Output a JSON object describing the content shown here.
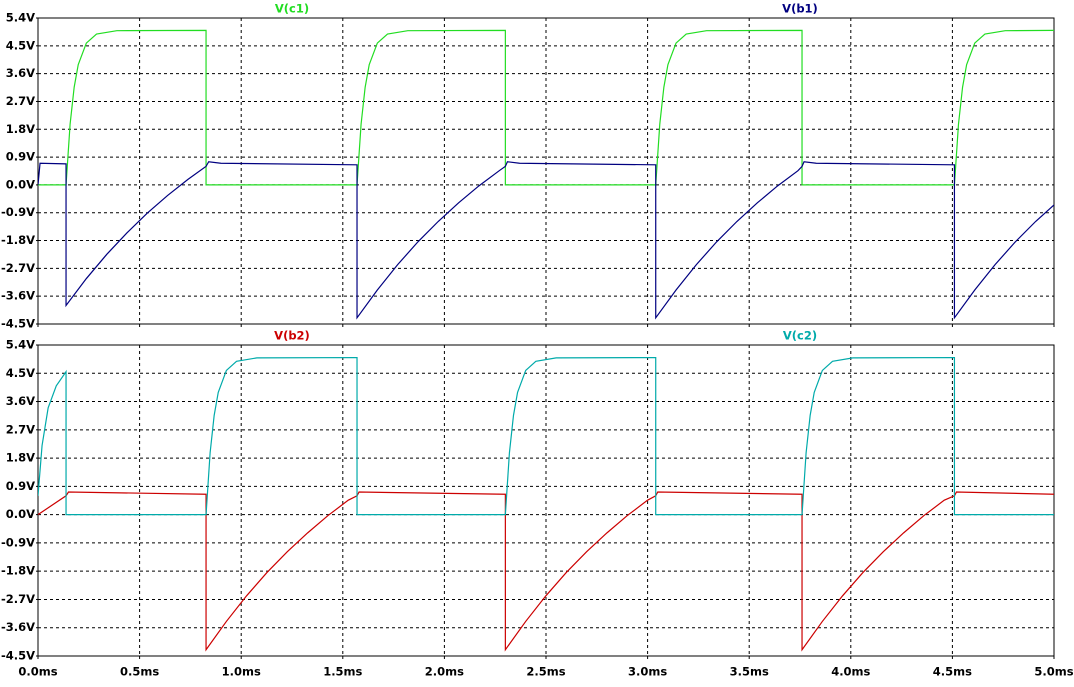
{
  "chart_data": [
    {
      "type": "line",
      "xlim": [
        0,
        5
      ],
      "ylim": [
        -4.5,
        5.4
      ],
      "grid": true,
      "xtick_labels": false,
      "xticks": [
        0,
        0.5,
        1,
        1.5,
        2,
        2.5,
        3,
        3.5,
        4,
        4.5,
        5
      ],
      "yticks": [
        {
          "value": -4.5,
          "label": "-4.5V"
        },
        {
          "value": -3.6,
          "label": "-3.6V"
        },
        {
          "value": -2.7,
          "label": "-2.7V"
        },
        {
          "value": -1.8,
          "label": "-1.8V"
        },
        {
          "value": -0.9,
          "label": "-0.9V"
        },
        {
          "value": 0,
          "label": "0.0V"
        },
        {
          "value": 0.9,
          "label": "0.9V"
        },
        {
          "value": 1.8,
          "label": "1.8V"
        },
        {
          "value": 2.7,
          "label": "2.7V"
        },
        {
          "value": 3.6,
          "label": "3.6V"
        },
        {
          "value": 4.5,
          "label": "4.5V"
        },
        {
          "value": 5.4,
          "label": "5.4V"
        }
      ],
      "series": [
        {
          "name": "V(c1)",
          "color": "#22dd22",
          "x": [
            0,
            0.138,
            0.158,
            0.178,
            0.198,
            0.238,
            0.288,
            0.388,
            0.827,
            0.827,
            1.57,
            1.59,
            1.61,
            1.63,
            1.67,
            1.72,
            1.82,
            2.3,
            2.3,
            3.04,
            3.06,
            3.08,
            3.1,
            3.14,
            3.19,
            3.29,
            3.76,
            3.76,
            4.51,
            4.53,
            4.55,
            4.57,
            4.61,
            4.66,
            4.76,
            5
          ],
          "values": [
            0,
            0,
            1.97,
            3.16,
            3.89,
            4.59,
            4.88,
            4.99,
            5,
            0,
            0,
            1.97,
            3.16,
            3.89,
            4.59,
            4.88,
            4.99,
            5,
            0,
            0,
            1.97,
            3.16,
            3.89,
            4.59,
            4.88,
            4.99,
            5,
            0,
            0,
            1.97,
            3.16,
            3.89,
            4.59,
            4.88,
            4.99,
            5
          ]
        },
        {
          "name": "V(b1)",
          "color": "#000080",
          "x": [
            0,
            0.01,
            0.138,
            0.138,
            0.238,
            0.338,
            0.438,
            0.538,
            0.638,
            0.738,
            0.827,
            0.84,
            0.9,
            1.57,
            1.57,
            1.67,
            1.77,
            1.87,
            1.97,
            2.07,
            2.17,
            2.27,
            2.3,
            2.31,
            2.37,
            3.04,
            3.04,
            3.14,
            3.24,
            3.34,
            3.44,
            3.54,
            3.64,
            3.74,
            3.76,
            3.77,
            3.83,
            4.51,
            4.51,
            4.61,
            4.71,
            4.81,
            4.91,
            5
          ],
          "values": [
            0,
            0.7,
            0.68,
            -3.9,
            -3.03,
            -2.25,
            -1.55,
            -0.91,
            -0.34,
            0.18,
            0.6,
            0.75,
            0.7,
            0.65,
            -4.3,
            -3.4,
            -2.58,
            -1.84,
            -1.18,
            -0.58,
            -0.03,
            0.46,
            0.6,
            0.75,
            0.7,
            0.65,
            -4.3,
            -3.4,
            -2.58,
            -1.84,
            -1.18,
            -0.58,
            -0.03,
            0.46,
            0.6,
            0.75,
            0.7,
            0.65,
            -4.3,
            -3.4,
            -2.58,
            -1.84,
            -1.18,
            -0.65
          ]
        }
      ]
    },
    {
      "type": "line",
      "xlim": [
        0,
        5
      ],
      "ylim": [
        -4.5,
        5.4
      ],
      "grid": true,
      "xtick_labels": true,
      "xticks": [
        {
          "value": 0,
          "label": "0.0ms"
        },
        {
          "value": 0.5,
          "label": "0.5ms"
        },
        {
          "value": 1,
          "label": "1.0ms"
        },
        {
          "value": 1.5,
          "label": "1.5ms"
        },
        {
          "value": 2,
          "label": "2.0ms"
        },
        {
          "value": 2.5,
          "label": "2.5ms"
        },
        {
          "value": 3,
          "label": "3.0ms"
        },
        {
          "value": 3.5,
          "label": "3.5ms"
        },
        {
          "value": 4,
          "label": "4.0ms"
        },
        {
          "value": 4.5,
          "label": "4.5ms"
        },
        {
          "value": 5,
          "label": "5.0ms"
        }
      ],
      "yticks": [
        {
          "value": -4.5,
          "label": "-4.5V"
        },
        {
          "value": -3.6,
          "label": "-3.6V"
        },
        {
          "value": -2.7,
          "label": "-2.7V"
        },
        {
          "value": -1.8,
          "label": "-1.8V"
        },
        {
          "value": -0.9,
          "label": "-0.9V"
        },
        {
          "value": 0,
          "label": "0.0V"
        },
        {
          "value": 0.9,
          "label": "0.9V"
        },
        {
          "value": 1.8,
          "label": "1.8V"
        },
        {
          "value": 2.7,
          "label": "2.7V"
        },
        {
          "value": 3.6,
          "label": "3.6V"
        },
        {
          "value": 4.5,
          "label": "4.5V"
        },
        {
          "value": 5.4,
          "label": "5.4V"
        }
      ],
      "series": [
        {
          "name": "V(b2)",
          "color": "#cc0000",
          "x": [
            0,
            0.138,
            0.15,
            0.827,
            0.827,
            0.927,
            1.027,
            1.127,
            1.227,
            1.327,
            1.427,
            1.527,
            1.57,
            1.58,
            2.3,
            2.3,
            2.4,
            2.5,
            2.6,
            2.7,
            2.8,
            2.9,
            3,
            3.04,
            3.05,
            3.76,
            3.76,
            3.86,
            3.96,
            4.06,
            4.16,
            4.26,
            4.36,
            4.46,
            4.51,
            4.52,
            5
          ],
          "values": [
            0,
            0.6,
            0.72,
            0.65,
            -4.3,
            -3.4,
            -2.58,
            -1.84,
            -1.18,
            -0.58,
            -0.03,
            0.46,
            0.6,
            0.72,
            0.65,
            -4.3,
            -3.4,
            -2.58,
            -1.84,
            -1.18,
            -0.58,
            -0.03,
            0.46,
            0.6,
            0.72,
            0.65,
            -4.3,
            -3.4,
            -2.58,
            -1.84,
            -1.18,
            -0.58,
            -0.03,
            0.46,
            0.6,
            0.72,
            0.65
          ]
        },
        {
          "name": "V(c2)",
          "color": "#00aaaa",
          "x": [
            0,
            0.02,
            0.05,
            0.09,
            0.138,
            0.138,
            0.827,
            0.847,
            0.867,
            0.887,
            0.927,
            0.977,
            1.077,
            1.57,
            1.57,
            2.3,
            2.32,
            2.34,
            2.36,
            2.4,
            2.45,
            2.55,
            3.04,
            3.04,
            3.76,
            3.78,
            3.8,
            3.82,
            3.86,
            3.91,
            4.01,
            4.51,
            4.51,
            5
          ],
          "values": [
            0.6,
            2.2,
            3.4,
            4.1,
            4.55,
            0,
            0,
            1.97,
            3.16,
            3.89,
            4.59,
            4.88,
            4.99,
            5,
            0,
            0,
            1.97,
            3.16,
            3.89,
            4.59,
            4.88,
            4.99,
            5,
            0,
            0,
            1.97,
            3.16,
            3.89,
            4.59,
            4.88,
            4.99,
            5,
            0,
            0
          ]
        }
      ]
    }
  ]
}
